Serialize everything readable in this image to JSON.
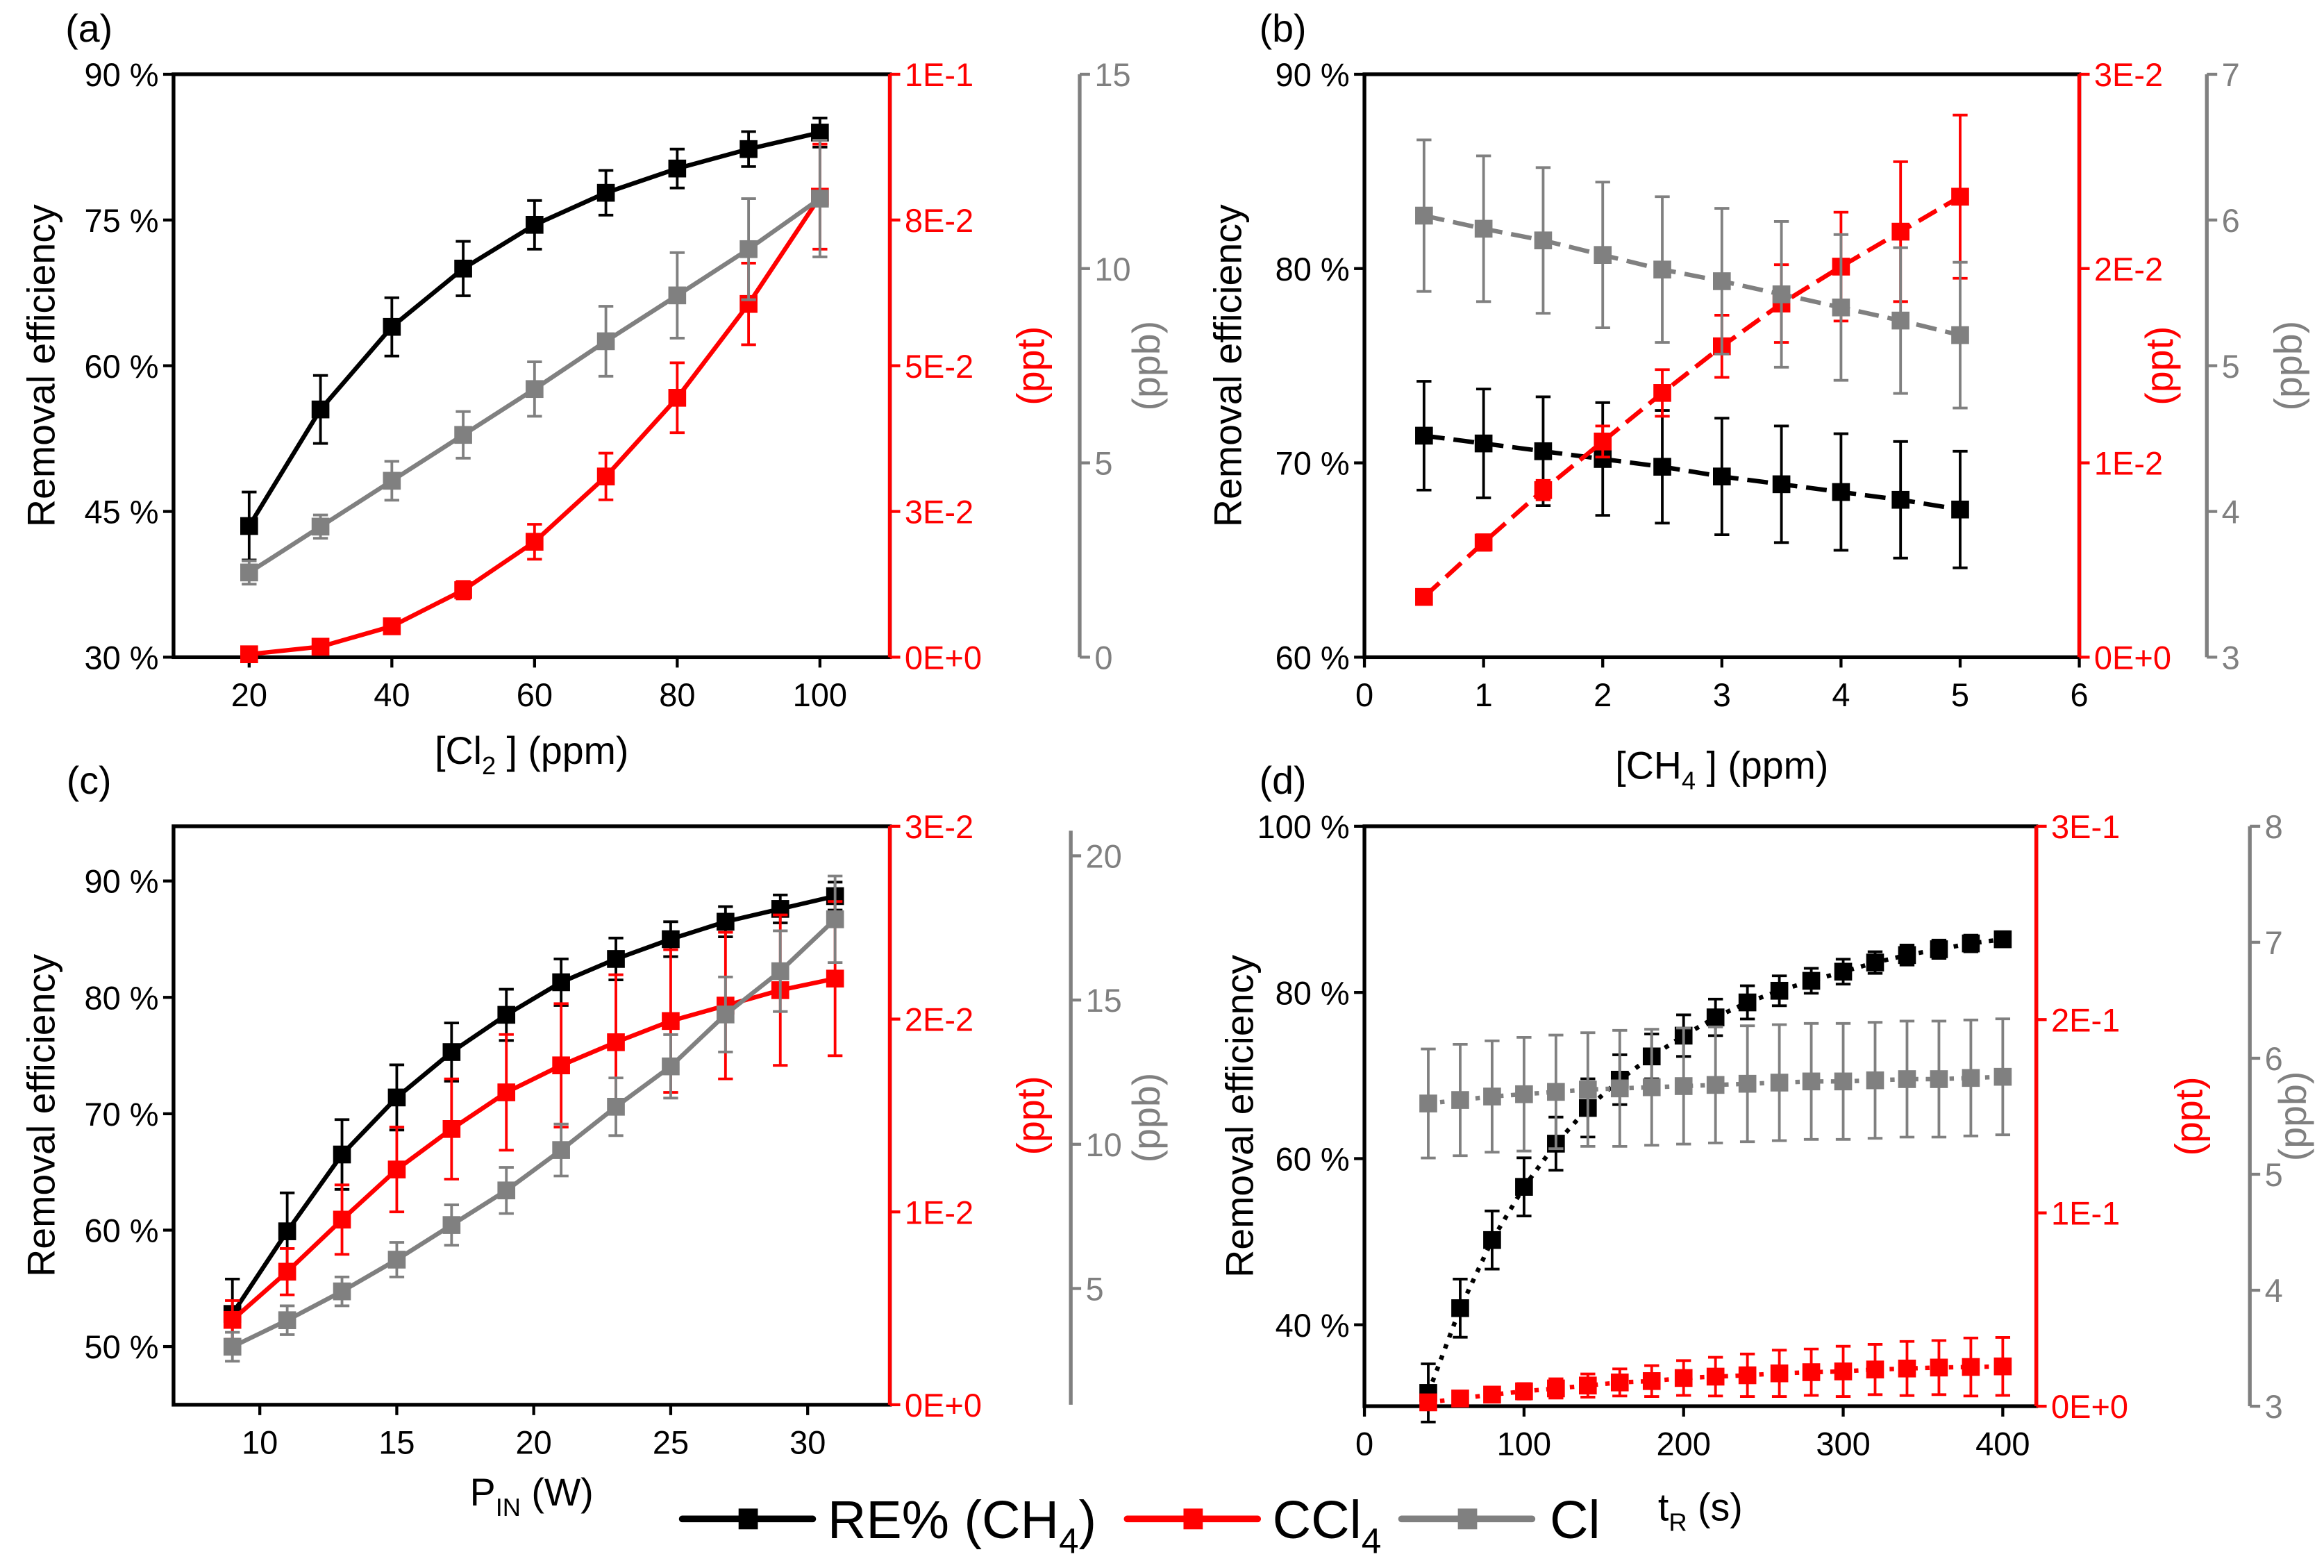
{
  "legend": [
    {
      "label": "RE% (CH",
      "sub": "4",
      "rest": ")",
      "color": "#000000"
    },
    {
      "label": "CCl",
      "sub": "4",
      "rest": "",
      "color": "#ff0000"
    },
    {
      "label": "Cl",
      "sub": "",
      "rest": "",
      "color": "#808080"
    }
  ],
  "chart_data": [
    {
      "type": "line",
      "panel_label": "(a)",
      "xlabel": {
        "pre": "[Cl",
        "sub": "2",
        "post": " ] (ppm)"
      },
      "ylabel_left": "Removal efficiency",
      "ylabel_red": "(ppt)",
      "ylabel_gray": "(ppb)",
      "xlim": [
        9.4,
        109.8
      ],
      "ylim_left": [
        30,
        90
      ],
      "ylim_red": [
        0,
        0.1
      ],
      "ylim_gray": [
        0,
        15
      ],
      "xticks": [
        {
          "v": 20,
          "label": "20"
        },
        {
          "v": 40,
          "label": "40"
        },
        {
          "v": 60,
          "label": "60"
        },
        {
          "v": 80,
          "label": "80"
        },
        {
          "v": 100,
          "label": "100"
        }
      ],
      "yticks_left": [
        {
          "v": 30,
          "label": "30 %"
        },
        {
          "v": 45,
          "label": "45 %"
        },
        {
          "v": 60,
          "label": "60 %"
        },
        {
          "v": 75,
          "label": "75 %"
        },
        {
          "v": 90,
          "label": "90 %"
        }
      ],
      "yticks_red": [
        {
          "v": 0,
          "label": "0E+0"
        },
        {
          "v": 0.025,
          "label": "3E-2"
        },
        {
          "v": 0.05,
          "label": "5E-2"
        },
        {
          "v": 0.075,
          "label": "8E-2"
        },
        {
          "v": 0.1,
          "label": "1E-1"
        }
      ],
      "yticks_gray": [
        {
          "v": 0,
          "label": "0"
        },
        {
          "v": 5,
          "label": "5"
        },
        {
          "v": 10,
          "label": "10"
        },
        {
          "v": 15,
          "label": "15"
        }
      ],
      "x": [
        20,
        30,
        40,
        50,
        60,
        70,
        80,
        90,
        100
      ],
      "series": [
        {
          "name": "RE% (CH4)",
          "axis": "left",
          "color": "#000000",
          "values": [
            43.5,
            55.5,
            64,
            70,
            74.5,
            77.8,
            80.3,
            82.3,
            84
          ],
          "err": [
            3.5,
            3.5,
            3,
            2.8,
            2.5,
            2.3,
            2,
            1.8,
            1.5
          ]
        },
        {
          "name": "CCl4",
          "axis": "red",
          "color": "#ff0000",
          "values": [
            0.0005,
            0.0018,
            0.0053,
            0.0115,
            0.0198,
            0.031,
            0.0445,
            0.0606,
            0.079
          ],
          "err": [
            0.0005,
            0.001,
            0.001,
            0.0015,
            0.003,
            0.004,
            0.006,
            0.007,
            0.009
          ]
        },
        {
          "name": "Cl",
          "axis": "gray",
          "color": "#808080",
          "values": [
            2.18,
            3.36,
            4.54,
            5.72,
            6.9,
            8.13,
            9.31,
            10.5,
            11.8
          ],
          "err": [
            0.3,
            0.3,
            0.5,
            0.6,
            0.7,
            0.9,
            1.1,
            1.3,
            1.5
          ]
        }
      ]
    },
    {
      "type": "line",
      "panel_label": "(b)",
      "xlabel": {
        "pre": "[CH",
        "sub": "4",
        "post": " ] (ppm)"
      },
      "ylabel_left": "Removal efficiency",
      "ylabel_red": "(ppt)",
      "ylabel_gray": "(ppb)",
      "xlim": [
        0,
        6
      ],
      "ylim_left": [
        60,
        90
      ],
      "ylim_red": [
        0,
        0.03
      ],
      "ylim_gray": [
        3,
        7
      ],
      "xticks": [
        {
          "v": 0,
          "label": "0"
        },
        {
          "v": 1,
          "label": "1"
        },
        {
          "v": 2,
          "label": "2"
        },
        {
          "v": 3,
          "label": "3"
        },
        {
          "v": 4,
          "label": "4"
        },
        {
          "v": 5,
          "label": "5"
        },
        {
          "v": 6,
          "label": "6"
        }
      ],
      "yticks_left": [
        {
          "v": 60,
          "label": "60 %"
        },
        {
          "v": 70,
          "label": "70 %"
        },
        {
          "v": 80,
          "label": "80 %"
        },
        {
          "v": 90,
          "label": "90 %"
        }
      ],
      "yticks_red": [
        {
          "v": 0,
          "label": "0E+0"
        },
        {
          "v": 0.01,
          "label": "1E-2"
        },
        {
          "v": 0.02,
          "label": "2E-2"
        },
        {
          "v": 0.03,
          "label": "3E-2"
        }
      ],
      "yticks_gray": [
        {
          "v": 3,
          "label": "3"
        },
        {
          "v": 4,
          "label": "4"
        },
        {
          "v": 5,
          "label": "5"
        },
        {
          "v": 6,
          "label": "6"
        },
        {
          "v": 7,
          "label": "7"
        }
      ],
      "x": [
        0.5,
        1,
        1.5,
        2,
        2.5,
        3,
        3.5,
        4,
        4.5,
        5
      ],
      "series": [
        {
          "name": "RE% (CH4)",
          "axis": "left",
          "color": "#000000",
          "values": [
            71.4,
            71.0,
            70.6,
            70.2,
            69.8,
            69.3,
            68.9,
            68.5,
            68.1,
            67.6
          ],
          "err": [
            2.8,
            2.8,
            2.8,
            2.9,
            2.9,
            3,
            3,
            3,
            3,
            3
          ]
        },
        {
          "name": "CCl4",
          "axis": "red",
          "color": "#ff0000",
          "values": [
            0.0031,
            0.0059,
            0.0086,
            0.0111,
            0.0136,
            0.016,
            0.0182,
            0.0201,
            0.0219,
            0.0237
          ],
          "err": [
            0.0003,
            0.0004,
            0.0005,
            0.0008,
            0.0012,
            0.0016,
            0.002,
            0.0028,
            0.0036,
            0.0042
          ]
        },
        {
          "name": "Cl",
          "axis": "gray",
          "color": "#808080",
          "values": [
            6.03,
            5.94,
            5.86,
            5.76,
            5.66,
            5.58,
            5.49,
            5.4,
            5.31,
            5.21
          ],
          "err": [
            0.52,
            0.5,
            0.5,
            0.5,
            0.5,
            0.5,
            0.5,
            0.5,
            0.5,
            0.5
          ]
        }
      ]
    },
    {
      "type": "line",
      "panel_label": "(c)",
      "xlabel": {
        "pre": "P",
        "sub": "IN",
        "post": " (W)"
      },
      "ylabel_left": "Removal efficiency",
      "ylabel_red": "(ppt)",
      "ylabel_gray": "(ppb)",
      "xlim": [
        6.85,
        33
      ],
      "ylim_left": [
        45,
        94.7
      ],
      "ylim_red": [
        0,
        0.03
      ],
      "ylim_gray": [
        0.97,
        20.87
      ],
      "xticks": [
        {
          "v": 10,
          "label": "10"
        },
        {
          "v": 15,
          "label": "15"
        },
        {
          "v": 20,
          "label": "20"
        },
        {
          "v": 25,
          "label": "25"
        },
        {
          "v": 30,
          "label": "30"
        }
      ],
      "yticks_left": [
        {
          "v": 50,
          "label": "50 %"
        },
        {
          "v": 60,
          "label": "60 %"
        },
        {
          "v": 70,
          "label": "70 %"
        },
        {
          "v": 80,
          "label": "80 %"
        },
        {
          "v": 90,
          "label": "90 %"
        }
      ],
      "yticks_red": [
        {
          "v": 0,
          "label": "0E+0"
        },
        {
          "v": 0.01,
          "label": "1E-2"
        },
        {
          "v": 0.02,
          "label": "2E-2"
        },
        {
          "v": 0.03,
          "label": "3E-2"
        }
      ],
      "yticks_gray": [
        {
          "v": 5,
          "label": "5"
        },
        {
          "v": 10,
          "label": "10"
        },
        {
          "v": 15,
          "label": "15"
        },
        {
          "v": 20,
          "label": "20"
        }
      ],
      "x": [
        9,
        11,
        13,
        15,
        17,
        19,
        21,
        23,
        25,
        27,
        29,
        31
      ],
      "series": [
        {
          "name": "RE% (CH4)",
          "axis": "left",
          "color": "#000000",
          "values": [
            52.8,
            59.9,
            66.5,
            71.4,
            75.3,
            78.5,
            81.3,
            83.3,
            85,
            86.5,
            87.6,
            88.7
          ],
          "err": [
            3,
            3.3,
            3,
            2.8,
            2.5,
            2.2,
            2,
            1.8,
            1.5,
            1.3,
            1.2,
            1.2
          ]
        },
        {
          "name": "CCl4",
          "axis": "red",
          "color": "#ff0000",
          "values": [
            0.0044,
            0.0069,
            0.0096,
            0.0122,
            0.0143,
            0.0162,
            0.0176,
            0.0188,
            0.0199,
            0.0207,
            0.0215,
            0.0221
          ],
          "err": [
            0.001,
            0.0012,
            0.0018,
            0.0022,
            0.0026,
            0.003,
            0.0032,
            0.0035,
            0.0037,
            0.0038,
            0.0039,
            0.004
          ]
        },
        {
          "name": "Cl",
          "axis": "gray",
          "color": "#808080",
          "values": [
            2.98,
            3.9,
            4.9,
            6.0,
            7.2,
            8.4,
            9.8,
            11.3,
            12.7,
            14.5,
            16.0,
            17.8
          ],
          "err": [
            0.5,
            0.5,
            0.5,
            0.6,
            0.7,
            0.8,
            0.9,
            1.0,
            1.1,
            1.3,
            1.4,
            1.5
          ]
        }
      ]
    },
    {
      "type": "line",
      "panel_label": "(d)",
      "xlabel": {
        "pre": "t",
        "sub": "R",
        "post": " (s)"
      },
      "ylabel_left": "Removal efficiency",
      "ylabel_red": "(ppt)",
      "ylabel_gray": "(ppb)",
      "xlim": [
        0,
        421
      ],
      "ylim_left": [
        30.2,
        100
      ],
      "ylim_red": [
        0,
        0.3
      ],
      "ylim_gray": [
        3,
        8
      ],
      "xticks": [
        {
          "v": 0,
          "label": "0"
        },
        {
          "v": 100,
          "label": "100"
        },
        {
          "v": 200,
          "label": "200"
        },
        {
          "v": 300,
          "label": "300"
        },
        {
          "v": 400,
          "label": "400"
        }
      ],
      "yticks_left": [
        {
          "v": 40,
          "label": "40 %"
        },
        {
          "v": 60,
          "label": "60 %"
        },
        {
          "v": 80,
          "label": "80 %"
        },
        {
          "v": 100,
          "label": "100 %"
        }
      ],
      "yticks_red": [
        {
          "v": 0,
          "label": "0E+0"
        },
        {
          "v": 0.1,
          "label": "1E-1"
        },
        {
          "v": 0.2,
          "label": "2E-1"
        },
        {
          "v": 0.3,
          "label": "3E-1"
        }
      ],
      "yticks_gray": [
        {
          "v": 3,
          "label": "3"
        },
        {
          "v": 4,
          "label": "4"
        },
        {
          "v": 5,
          "label": "5"
        },
        {
          "v": 6,
          "label": "6"
        },
        {
          "v": 7,
          "label": "7"
        },
        {
          "v": 8,
          "label": "8"
        }
      ],
      "x": [
        40,
        60,
        80,
        100,
        120,
        140,
        160,
        180,
        200,
        220,
        240,
        260,
        280,
        300,
        320,
        340,
        360,
        380,
        400
      ],
      "series": [
        {
          "name": "RE% (CH4)",
          "axis": "left",
          "color": "#000000",
          "values": [
            31.8,
            42,
            50.2,
            56.6,
            61.8,
            66.1,
            69.5,
            72.3,
            74.8,
            77,
            78.8,
            80.2,
            81.4,
            82.5,
            83.6,
            84.5,
            85.2,
            85.9,
            86.4
          ],
          "err": [
            3.5,
            3.5,
            3.5,
            3.5,
            3.2,
            3.5,
            3,
            2.7,
            2.5,
            2.2,
            2,
            1.8,
            1.5,
            1.5,
            1.3,
            1.2,
            1.1,
            1,
            0.9
          ]
        },
        {
          "name": "CCl4",
          "axis": "red",
          "color": "#ff0000",
          "values": [
            0.002,
            0.004,
            0.006,
            0.0077,
            0.0092,
            0.0107,
            0.0123,
            0.013,
            0.0146,
            0.0153,
            0.016,
            0.017,
            0.0176,
            0.018,
            0.019,
            0.0195,
            0.02,
            0.0203,
            0.0206
          ],
          "err": [
            0.002,
            0.003,
            0.003,
            0.004,
            0.005,
            0.006,
            0.007,
            0.008,
            0.009,
            0.01,
            0.011,
            0.012,
            0.012,
            0.013,
            0.013,
            0.014,
            0.014,
            0.015,
            0.015
          ]
        },
        {
          "name": "Cl",
          "axis": "gray",
          "color": "#808080",
          "values": [
            5.61,
            5.64,
            5.67,
            5.69,
            5.71,
            5.73,
            5.74,
            5.75,
            5.76,
            5.77,
            5.78,
            5.79,
            5.8,
            5.8,
            5.81,
            5.82,
            5.82,
            5.83,
            5.84
          ],
          "err": [
            0.47,
            0.48,
            0.48,
            0.49,
            0.49,
            0.49,
            0.5,
            0.5,
            0.5,
            0.5,
            0.5,
            0.5,
            0.5,
            0.5,
            0.5,
            0.5,
            0.5,
            0.5,
            0.5
          ]
        }
      ]
    }
  ]
}
